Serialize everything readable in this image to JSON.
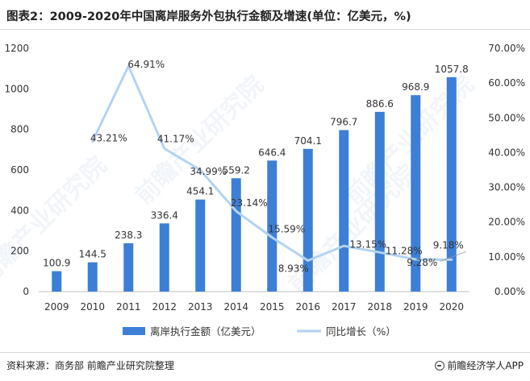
{
  "title": "图表2：2009-2020年中国离岸服务外包执行金额及增速(单位：亿美元，%)",
  "source": "资料来源：商务部 前瞻产业研究院整理",
  "brand": "前瞻经济学人APP",
  "watermark": "前瞻产业研究院",
  "chart_data": {
    "type": "bar",
    "title": "2009-2020年中国离岸服务外包执行金额及增速(单位：亿美元，%)",
    "categories": [
      "2009",
      "2010",
      "2011",
      "2012",
      "2013",
      "2014",
      "2015",
      "2016",
      "2017",
      "2018",
      "2019",
      "2020"
    ],
    "series": [
      {
        "name": "离岸执行金额（亿美元）",
        "type": "bar",
        "axis": "left",
        "color": "#3d7fd6",
        "values": [
          100.9,
          144.5,
          238.3,
          336.4,
          454.1,
          559.2,
          646.4,
          704.1,
          796.7,
          886.6,
          968.9,
          1057.8
        ],
        "labels": [
          "100.9",
          "144.5",
          "238.3",
          "336.4",
          "454.1",
          "559.2",
          "646.4",
          "704.1",
          "796.7",
          "886.6",
          "968.9",
          "1057.8"
        ]
      },
      {
        "name": "同比增长（%）",
        "type": "line",
        "axis": "right",
        "color": "#b3d3f2",
        "values": [
          null,
          43.21,
          64.91,
          41.17,
          34.99,
          23.14,
          15.59,
          8.93,
          13.15,
          11.28,
          9.28,
          9.18
        ],
        "labels": [
          "",
          "43.21%",
          "64.91%",
          "41.17%",
          "34.99%",
          "23.14%",
          "15.59%",
          "8.93%",
          "13.15%",
          "11.28%",
          "9.28%",
          "9.18%"
        ]
      }
    ],
    "y_left": {
      "min": 0,
      "max": 1200,
      "ticks": [
        "0",
        "200",
        "400",
        "600",
        "800",
        "1000",
        "1200"
      ]
    },
    "y_right": {
      "min": 0,
      "max": 70,
      "ticks": [
        "0.00%",
        "10.00%",
        "20.00%",
        "30.00%",
        "40.00%",
        "50.00%",
        "60.00%",
        "70.00%"
      ]
    },
    "legend": {
      "position": "bottom-center",
      "items": [
        "离岸执行金额（亿美元）",
        "同比增长（%）"
      ]
    },
    "grid": false
  }
}
